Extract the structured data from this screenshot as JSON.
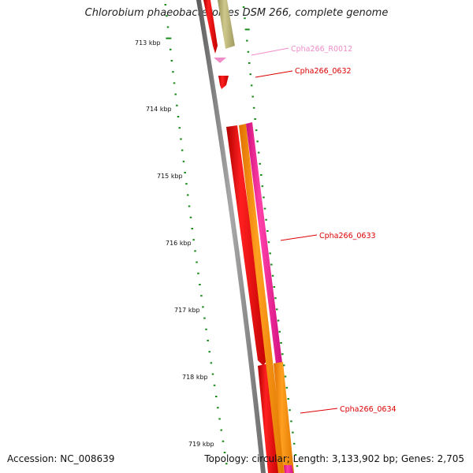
{
  "title": "Chlorobium phaeobacteroides DSM 266, complete genome",
  "footer": {
    "accession": "Accession: NC_008639",
    "summary": "Topology: circular; Length: 3,133,902 bp; Genes: 2,705"
  },
  "ticks": [
    "713 kbp",
    "714 kbp",
    "715 kbp",
    "716 kbp",
    "717 kbp",
    "718 kbp",
    "719 kbp"
  ],
  "genes": [
    {
      "label": "Cpha266_R0012",
      "color": "#f08cc8"
    },
    {
      "label": "Cpha266_0632",
      "color": "#dd0000"
    },
    {
      "label": "Cpha266_0633",
      "color": "#dd0000"
    },
    {
      "label": "Cpha266_0634",
      "color": "#dd0000"
    }
  ],
  "colors": {
    "backbone": "#808080",
    "cds": "#ff0000",
    "orange_feature": "#ff8c00",
    "magenta_feature": "#ff1493",
    "olive_feature": "#b8b070",
    "pink_rna": "#f08cc8",
    "ticks": "#1a8a1a"
  }
}
